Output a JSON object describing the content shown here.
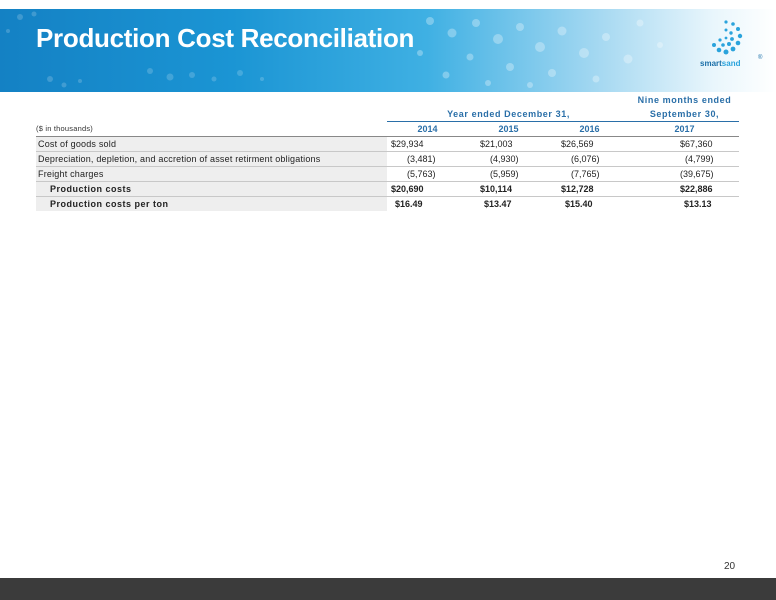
{
  "header": {
    "title": "Production Cost Reconciliation",
    "logo_text_a": "smart",
    "logo_text_b": "sand",
    "logo_tm": "®"
  },
  "table": {
    "units_label": "($ in thousands)",
    "group_header": "Year ended December 31,",
    "nine_months_line1": "Nine months ended",
    "nine_months_line2": "September 30,",
    "columns": [
      "2014",
      "2015",
      "2016",
      "2017"
    ],
    "rows": [
      {
        "label": "Cost of goods sold",
        "values": [
          "$29,934",
          "$21,003",
          "$26,569",
          "$67,360"
        ],
        "bold": false
      },
      {
        "label": "Depreciation, depletion, and accretion of asset retirment obligations",
        "values": [
          "(3,481)",
          "(4,930)",
          "(6,076)",
          "(4,799)"
        ],
        "bold": false
      },
      {
        "label": "Freight charges",
        "values": [
          "(5,763)",
          "(5,959)",
          "(7,765)",
          "(39,675)"
        ],
        "bold": false
      },
      {
        "label": "Production costs",
        "values": [
          "$20,690",
          "$10,114",
          "$12,728",
          "$22,886"
        ],
        "bold": true
      },
      {
        "label": "Production costs per ton",
        "values": [
          "$16.49",
          "$13.47",
          "$15.40",
          "$13.13"
        ],
        "bold": true
      }
    ]
  },
  "footer": {
    "page_number": "20"
  },
  "colors": {
    "banner": "#1b95d4",
    "header_text": "#2a6fa8",
    "footer_bar": "#3b3b3b"
  }
}
